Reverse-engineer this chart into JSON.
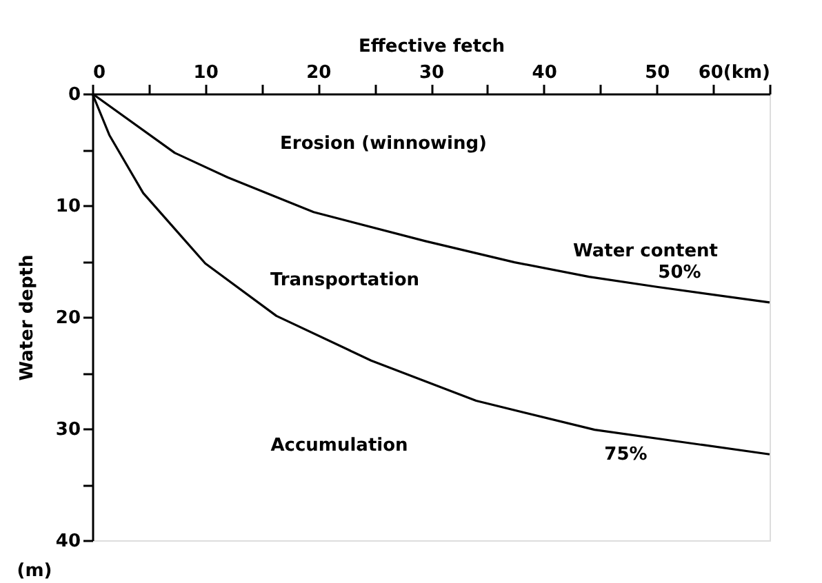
{
  "chart_data": {
    "type": "line",
    "xlabel": "Effective fetch",
    "ylabel": "Water depth",
    "xlim": [
      0,
      60
    ],
    "ylim": [
      40,
      0
    ],
    "xticks": [
      0,
      {
        "value": 5,
        "label": null
      },
      10,
      {
        "value": 15,
        "label": null
      },
      20,
      {
        "value": 25,
        "label": null
      },
      30,
      {
        "value": 35,
        "label": null
      },
      40,
      {
        "value": 45,
        "label": null
      },
      50,
      {
        "value": 55,
        "label": null
      },
      {
        "value": 60,
        "label": "60(km)"
      }
    ],
    "yticks": [
      0,
      {
        "value": 5,
        "label": null
      },
      10,
      {
        "value": 15,
        "label": null
      },
      20,
      {
        "value": 25,
        "label": null
      },
      30,
      {
        "value": 35,
        "label": null
      },
      40
    ],
    "series": [
      {
        "name": "50%",
        "color": "#000000",
        "x": [
          0,
          7.3,
          12,
          19.6,
          29.5,
          37.4,
          44,
          50,
          60
        ],
        "values": [
          0,
          5.3,
          7.5,
          10.6,
          13.2,
          15.1,
          16.4,
          17.3,
          18.7
        ]
      },
      {
        "name": "75%",
        "color": "#000000",
        "x": [
          0,
          1.5,
          4.5,
          10,
          16.3,
          24.7,
          34,
          44.5,
          60
        ],
        "values": [
          0,
          3.7,
          8.9,
          15.2,
          19.9,
          23.9,
          27.5,
          30.1,
          32.3
        ]
      }
    ],
    "annotations": [
      "Erosion (winnowing)",
      "Transportation",
      "Accumulation",
      "Water content",
      "(m)"
    ],
    "grid": false,
    "legend": false,
    "marker": "none",
    "line_style": "solid"
  }
}
